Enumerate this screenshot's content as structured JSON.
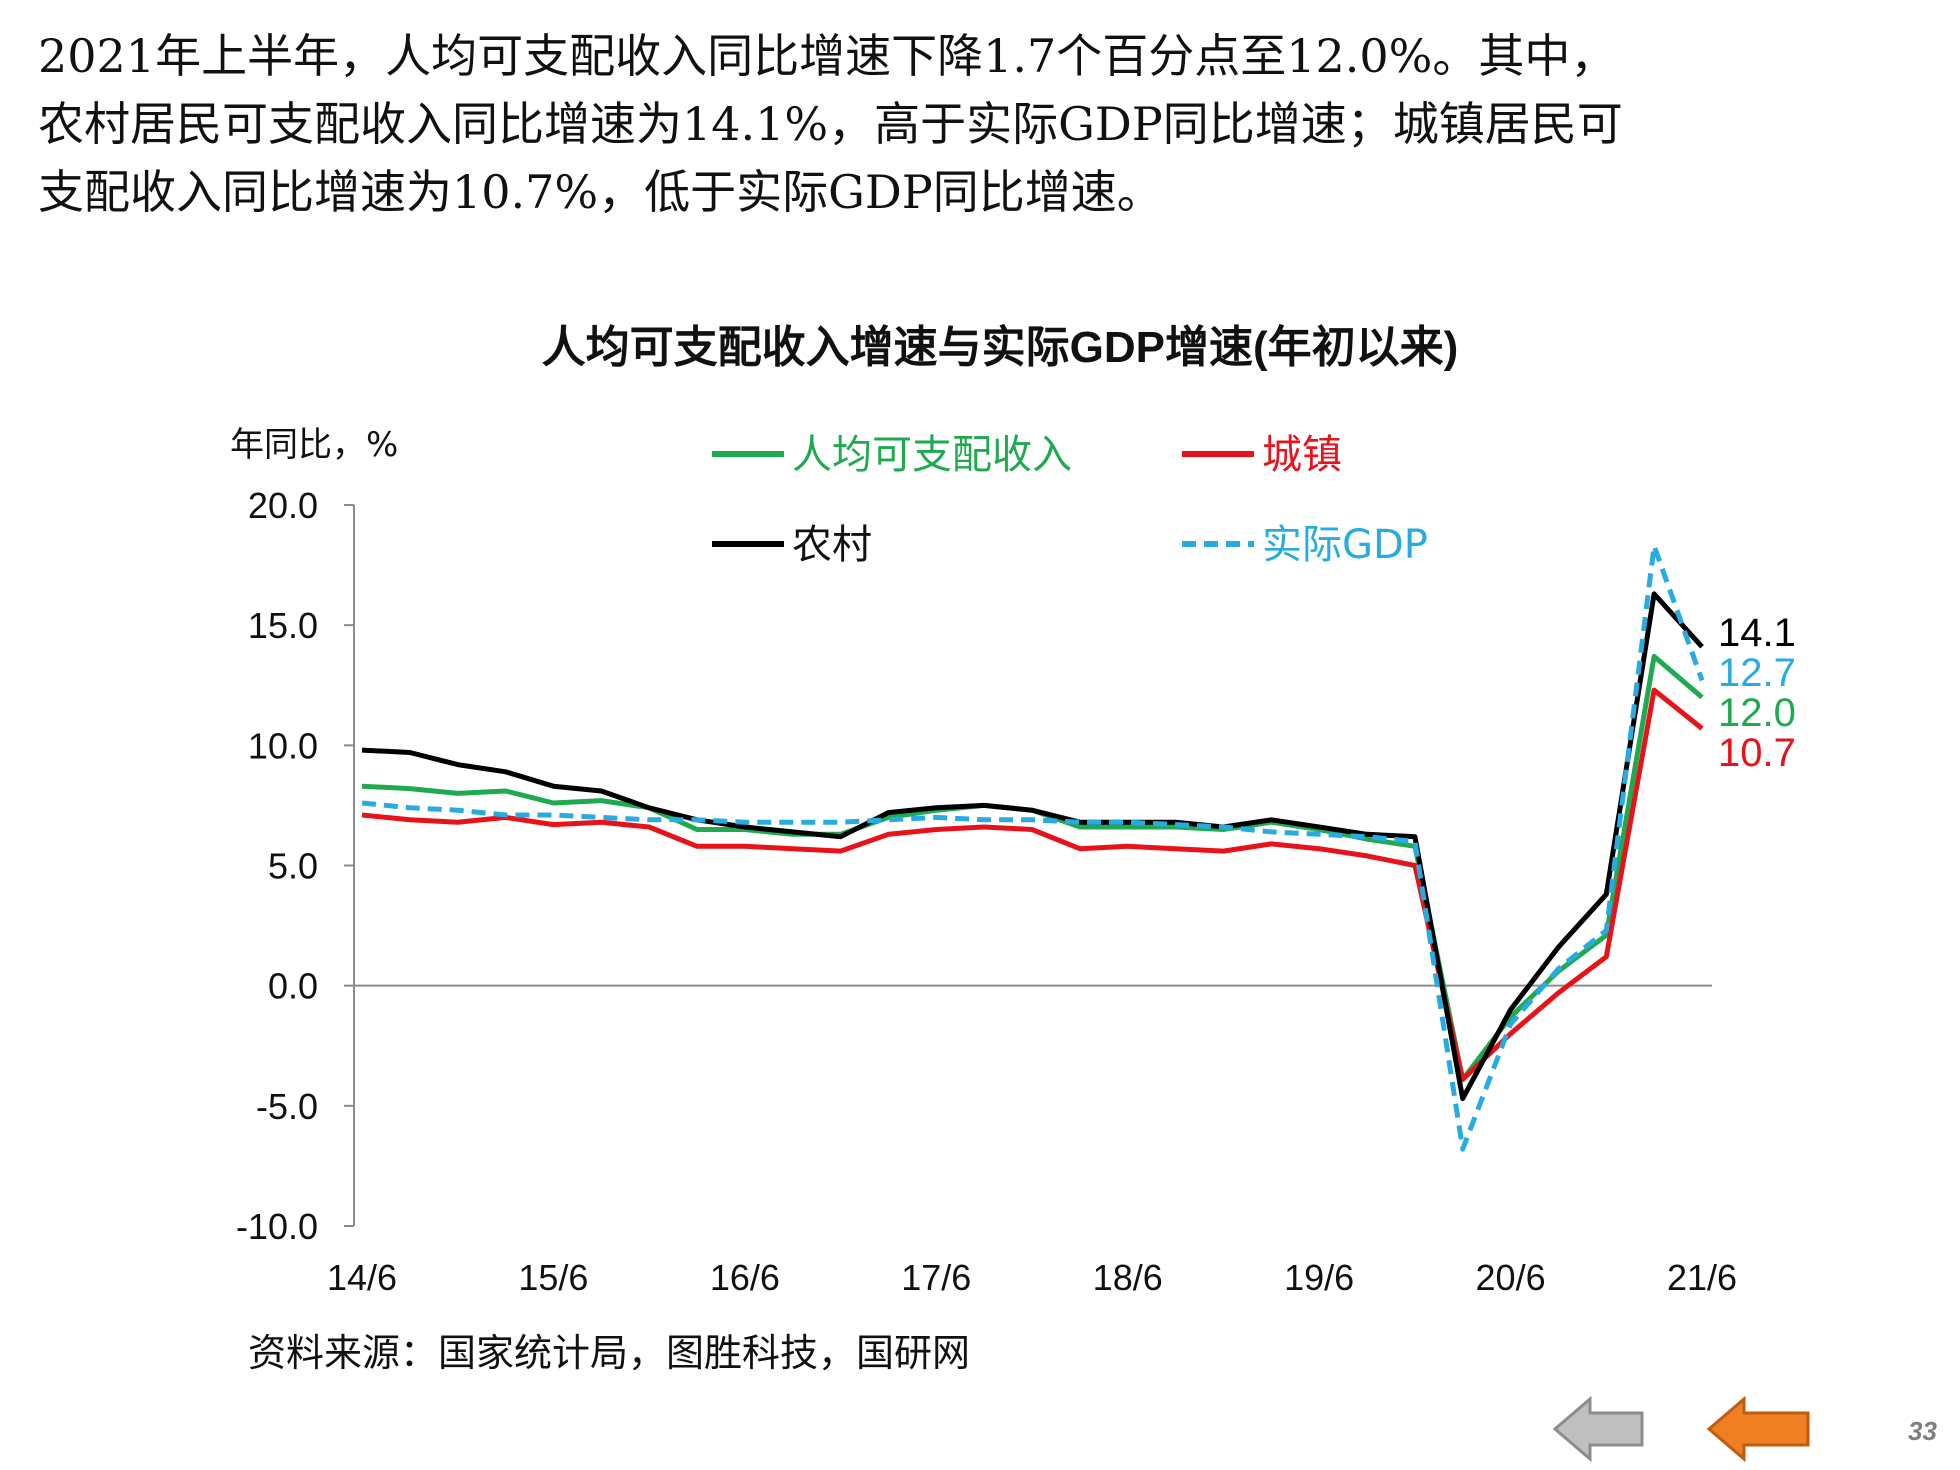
{
  "intro": {
    "line1": "2021年上半年，人均可支配收入同比增速下降1.7个百分点至12.0%。其中，",
    "line2": "农村居民可支配收入同比增速为14.1%，高于实际GDP同比增速；城镇居民可",
    "line3": "支配收入同比增速为10.7%，低于实际GDP同比增速。"
  },
  "source": "资料来源：国家统计局，图胜科技，国研网",
  "page_number": "33",
  "nav": {
    "prev_icon": "arrow-left-gray-icon",
    "next_icon": "arrow-left-orange-icon"
  },
  "colors": {
    "per_capita": "#1faa50",
    "urban": "#e8131a",
    "rural": "#000000",
    "gdp": "#28abe2",
    "prev_arrow": "#bfbfbf",
    "next_arrow": "#f07f22"
  },
  "chart_data": {
    "type": "line",
    "title": "人均可支配收入增速与实际GDP增速(年初以来)",
    "ylabel": "年同比，%",
    "ylim": [
      -10,
      20
    ],
    "yticks": [
      20,
      15,
      10,
      5,
      0,
      -5,
      -10
    ],
    "ytick_labels": [
      "20.0",
      "15.0",
      "10.0",
      "5.0",
      "0.0",
      "-5.0",
      "-10.0"
    ],
    "x_tick_labels": [
      "14/6",
      "15/6",
      "16/6",
      "17/6",
      "18/6",
      "19/6",
      "20/6",
      "21/6"
    ],
    "x_tick_index": [
      0,
      4,
      8,
      12,
      16,
      20,
      24,
      28
    ],
    "x": [
      "14/6",
      "14/9",
      "14/12",
      "15/3",
      "15/6",
      "15/9",
      "15/12",
      "16/3",
      "16/6",
      "16/9",
      "16/12",
      "17/3",
      "17/6",
      "17/9",
      "17/12",
      "18/3",
      "18/6",
      "18/9",
      "18/12",
      "19/3",
      "19/6",
      "19/9",
      "19/12",
      "20/3",
      "20/6",
      "20/9",
      "20/12",
      "21/3",
      "21/6"
    ],
    "legend_position": "top",
    "series": [
      {
        "name": "人均可支配收入",
        "key": "per_capita",
        "dash": false,
        "values": [
          8.3,
          8.2,
          8.0,
          8.1,
          7.6,
          7.7,
          7.4,
          6.5,
          6.5,
          6.3,
          6.3,
          7.0,
          7.3,
          7.5,
          7.3,
          6.6,
          6.6,
          6.6,
          6.5,
          6.8,
          6.5,
          6.1,
          5.8,
          -3.9,
          -1.3,
          0.6,
          2.1,
          13.7,
          12.0
        ],
        "end_label": "12.0"
      },
      {
        "name": "城镇",
        "key": "urban",
        "dash": false,
        "values": [
          7.1,
          6.9,
          6.8,
          7.0,
          6.7,
          6.8,
          6.6,
          5.8,
          5.8,
          5.7,
          5.6,
          6.3,
          6.5,
          6.6,
          6.5,
          5.7,
          5.8,
          5.7,
          5.6,
          5.9,
          5.7,
          5.4,
          5.0,
          -3.9,
          -2.0,
          -0.3,
          1.2,
          12.3,
          10.7
        ],
        "end_label": "10.7"
      },
      {
        "name": "农村",
        "key": "rural",
        "dash": false,
        "values": [
          9.8,
          9.7,
          9.2,
          8.9,
          8.3,
          8.1,
          7.4,
          6.9,
          6.6,
          6.4,
          6.2,
          7.2,
          7.4,
          7.5,
          7.3,
          6.8,
          6.8,
          6.8,
          6.6,
          6.9,
          6.6,
          6.3,
          6.2,
          -4.7,
          -1.0,
          1.6,
          3.8,
          16.3,
          14.1
        ],
        "end_label": "14.1"
      },
      {
        "name": "实际GDP",
        "key": "gdp",
        "dash": true,
        "values": [
          7.6,
          7.4,
          7.3,
          7.1,
          7.1,
          7.0,
          6.9,
          6.9,
          6.8,
          6.8,
          6.8,
          6.9,
          7.0,
          6.9,
          6.9,
          6.8,
          6.8,
          6.7,
          6.6,
          6.4,
          6.3,
          6.2,
          6.0,
          -6.8,
          -1.6,
          0.7,
          2.3,
          18.3,
          12.7
        ],
        "end_label": "12.7"
      }
    ]
  }
}
